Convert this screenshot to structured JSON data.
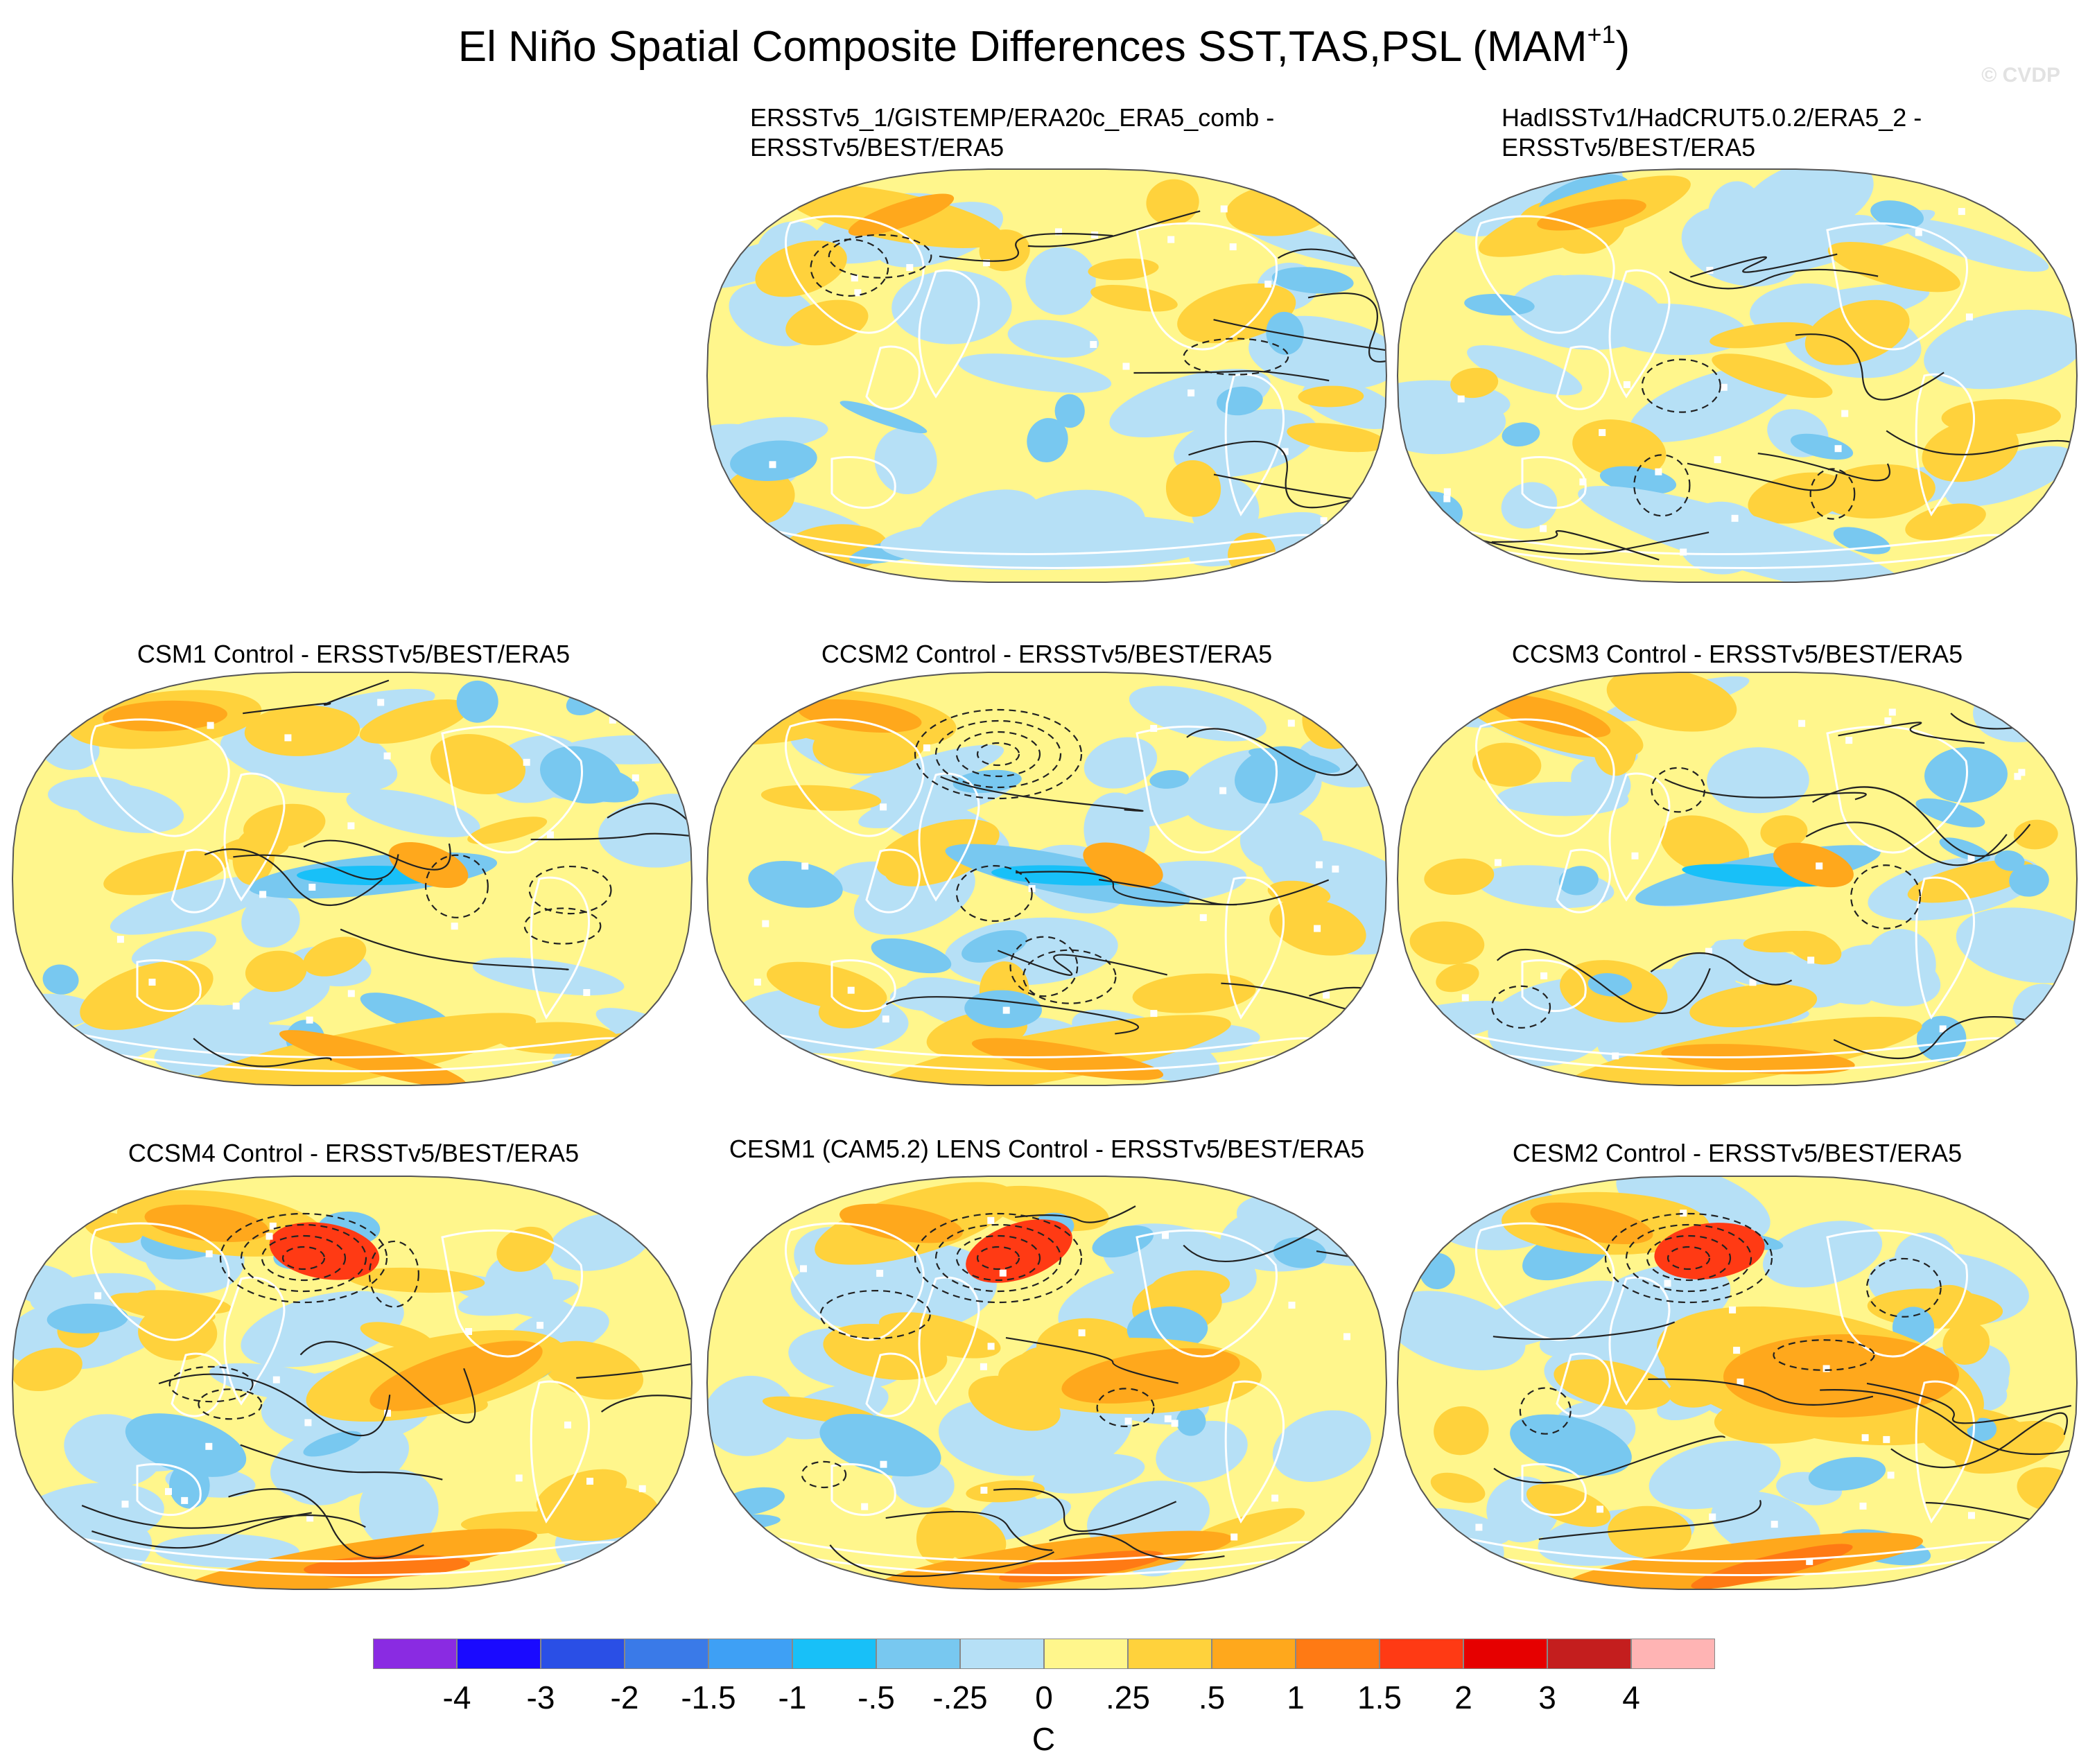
{
  "title": {
    "main": "El Niño Spatial Composite Differences SST,TAS,PSL (MAM",
    "superscript": "+1",
    "close": ")"
  },
  "watermark": "© CVDP",
  "panels": [
    {
      "id": "p1",
      "title_lines": [
        "ERSSTv5_1/GISTEMP/ERA20c_ERA5_comb -",
        "ERSSTv5/BEST/ERA5"
      ],
      "style": "obs"
    },
    {
      "id": "p2",
      "title_lines": [
        "HadISSTv1/HadCRUT5.0.2/ERA5_2 -",
        "ERSSTv5/BEST/ERA5"
      ],
      "style": "obs2"
    },
    {
      "id": "p3",
      "title_lines": [
        "CSM1 Control - ERSSTv5/BEST/ERA5"
      ],
      "style": "csm1"
    },
    {
      "id": "p4",
      "title_lines": [
        "CCSM2 Control - ERSSTv5/BEST/ERA5"
      ],
      "style": "ccsm2"
    },
    {
      "id": "p5",
      "title_lines": [
        "CCSM3 Control - ERSSTv5/BEST/ERA5"
      ],
      "style": "ccsm3"
    },
    {
      "id": "p6",
      "title_lines": [
        "CCSM4 Control - ERSSTv5/BEST/ERA5"
      ],
      "style": "ccsm4"
    },
    {
      "id": "p7",
      "title_lines": [
        "CESM1 (CAM5.2) LENS Control - ERSSTv5/BEST/ERA5"
      ],
      "style": "cesm1"
    },
    {
      "id": "p8",
      "title_lines": [
        "CESM2 Control - ERSSTv5/BEST/ERA5"
      ],
      "style": "cesm2"
    }
  ],
  "colorbar": {
    "colors": [
      "#8a2be2",
      "#1a0aff",
      "#2a4fe6",
      "#3a7ae8",
      "#3ea0f5",
      "#18c0f8",
      "#78c8f0",
      "#b6e0f6",
      "#fff68c",
      "#ffd23c",
      "#ffa81c",
      "#ff7a14",
      "#ff3a14",
      "#e60000",
      "#c41e1e",
      "#ffb4b4"
    ],
    "labels": [
      "-4",
      "-3",
      "-2",
      "-1.5",
      "-1",
      "-.5",
      "-.25",
      "0",
      ".25",
      ".5",
      "1",
      "1.5",
      "2",
      "3",
      "4"
    ],
    "units": "C"
  }
}
